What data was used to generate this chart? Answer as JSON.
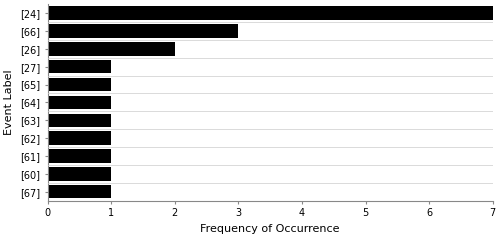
{
  "categories": [
    "[24]",
    "[66]",
    "[26]",
    "[27]",
    "[65]",
    "[64]",
    "[63]",
    "[62]",
    "[61]",
    "[60]",
    "[67]"
  ],
  "values": [
    7,
    3,
    2,
    1,
    1,
    1,
    1,
    1,
    1,
    1,
    1
  ],
  "bar_color": "#000000",
  "xlabel": "Frequency of Occurrence",
  "ylabel": "Event Label",
  "xlim": [
    0,
    7
  ],
  "xticks": [
    0,
    1,
    2,
    3,
    4,
    5,
    6,
    7
  ],
  "bar_height": 0.75,
  "figsize": [
    5.0,
    2.38
  ],
  "dpi": 100,
  "xlabel_fontsize": 8,
  "ylabel_fontsize": 8,
  "tick_fontsize": 7,
  "separator_color": "#cccccc",
  "spine_color": "#888888"
}
